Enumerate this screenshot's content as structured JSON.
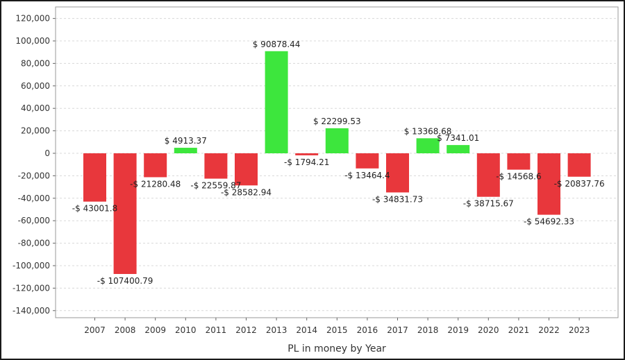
{
  "chart_data": {
    "type": "bar",
    "title": "",
    "xlabel": "PL in money by Year",
    "ylabel": "",
    "ylim": [
      -150000,
      125000
    ],
    "y_ticks": [
      120000,
      100000,
      80000,
      60000,
      40000,
      20000,
      0,
      -20000,
      -40000,
      -60000,
      -80000,
      -100000,
      -120000,
      -140000
    ],
    "y_tick_labels": [
      "120,000",
      "100,000",
      "80,000",
      "60,000",
      "40,000",
      "20,000",
      "0",
      "-20,000",
      "-40,000",
      "-60,000",
      "-80,000",
      "-100,000",
      "-120,000",
      "-140,000"
    ],
    "grid": true,
    "legend": "none",
    "categories": [
      "2007",
      "2008",
      "2009",
      "2010",
      "2011",
      "2012",
      "2013",
      "2014",
      "2015",
      "2016",
      "2017",
      "2018",
      "2019",
      "2020",
      "2021",
      "2022",
      "2023"
    ],
    "values": [
      -43001.8,
      -107400.79,
      -21280.48,
      4913.37,
      -22559.87,
      -28582.94,
      90878.44,
      -1794.21,
      22299.53,
      -13464.4,
      -34831.73,
      13368.68,
      7341.01,
      -38715.67,
      -14568.6,
      -54692.33,
      -20837.76
    ],
    "data_labels": [
      "-$ 43001.8",
      "-$ 107400.79",
      "-$ 21280.48",
      "$ 4913.37",
      "-$ 22559.87",
      "-$ 28582.94",
      "$ 90878.44",
      "-$ 1794.21",
      "$ 22299.53",
      "-$ 13464.4",
      "-$ 34831.73",
      "$ 13368.68",
      "$ 7341.01",
      "-$ 38715.67",
      "-$ 14568.6",
      "-$ 54692.33",
      "-$ 20837.76"
    ],
    "colors": {
      "positive": "#3de63d",
      "negative": "#e8373c"
    }
  }
}
